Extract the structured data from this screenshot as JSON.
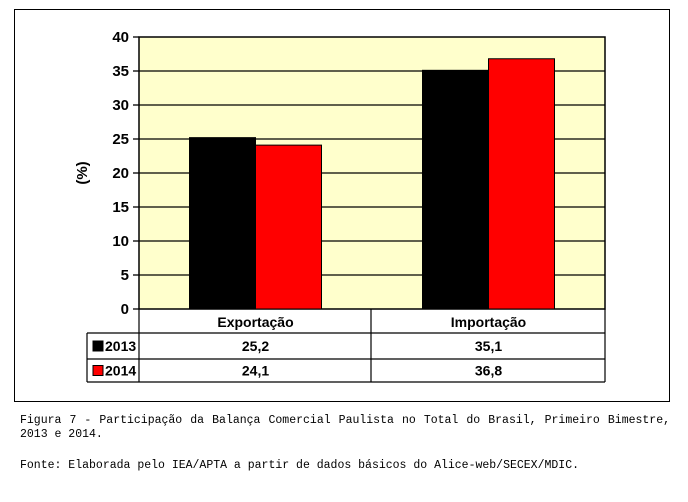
{
  "chart_data": {
    "type": "bar",
    "ylabel": "(%)",
    "ylim": [
      0,
      40
    ],
    "yticks": [
      0,
      5,
      10,
      15,
      20,
      25,
      30,
      35,
      40
    ],
    "grid": true,
    "categories": [
      "Exportação",
      "Importação"
    ],
    "series": [
      {
        "name": "2013",
        "color": "#000000",
        "values": [
          25.2,
          35.1
        ],
        "labels": [
          "25,2",
          "35,1"
        ]
      },
      {
        "name": "2014",
        "color": "#ff0000",
        "values": [
          24.1,
          36.8
        ],
        "labels": [
          "24,1",
          "36,8"
        ]
      }
    ],
    "plot_background": "#ffffcc",
    "legend": "data-table"
  },
  "caption": {
    "figure": "Figura 7 - Participação da Balança Comercial Paulista no Total do Brasil, Primeiro Bimestre, 2013 e 2014.",
    "source": "Fonte: Elaborada pelo IEA/APTA a partir de dados básicos do Alice-web/SECEX/MDIC."
  }
}
